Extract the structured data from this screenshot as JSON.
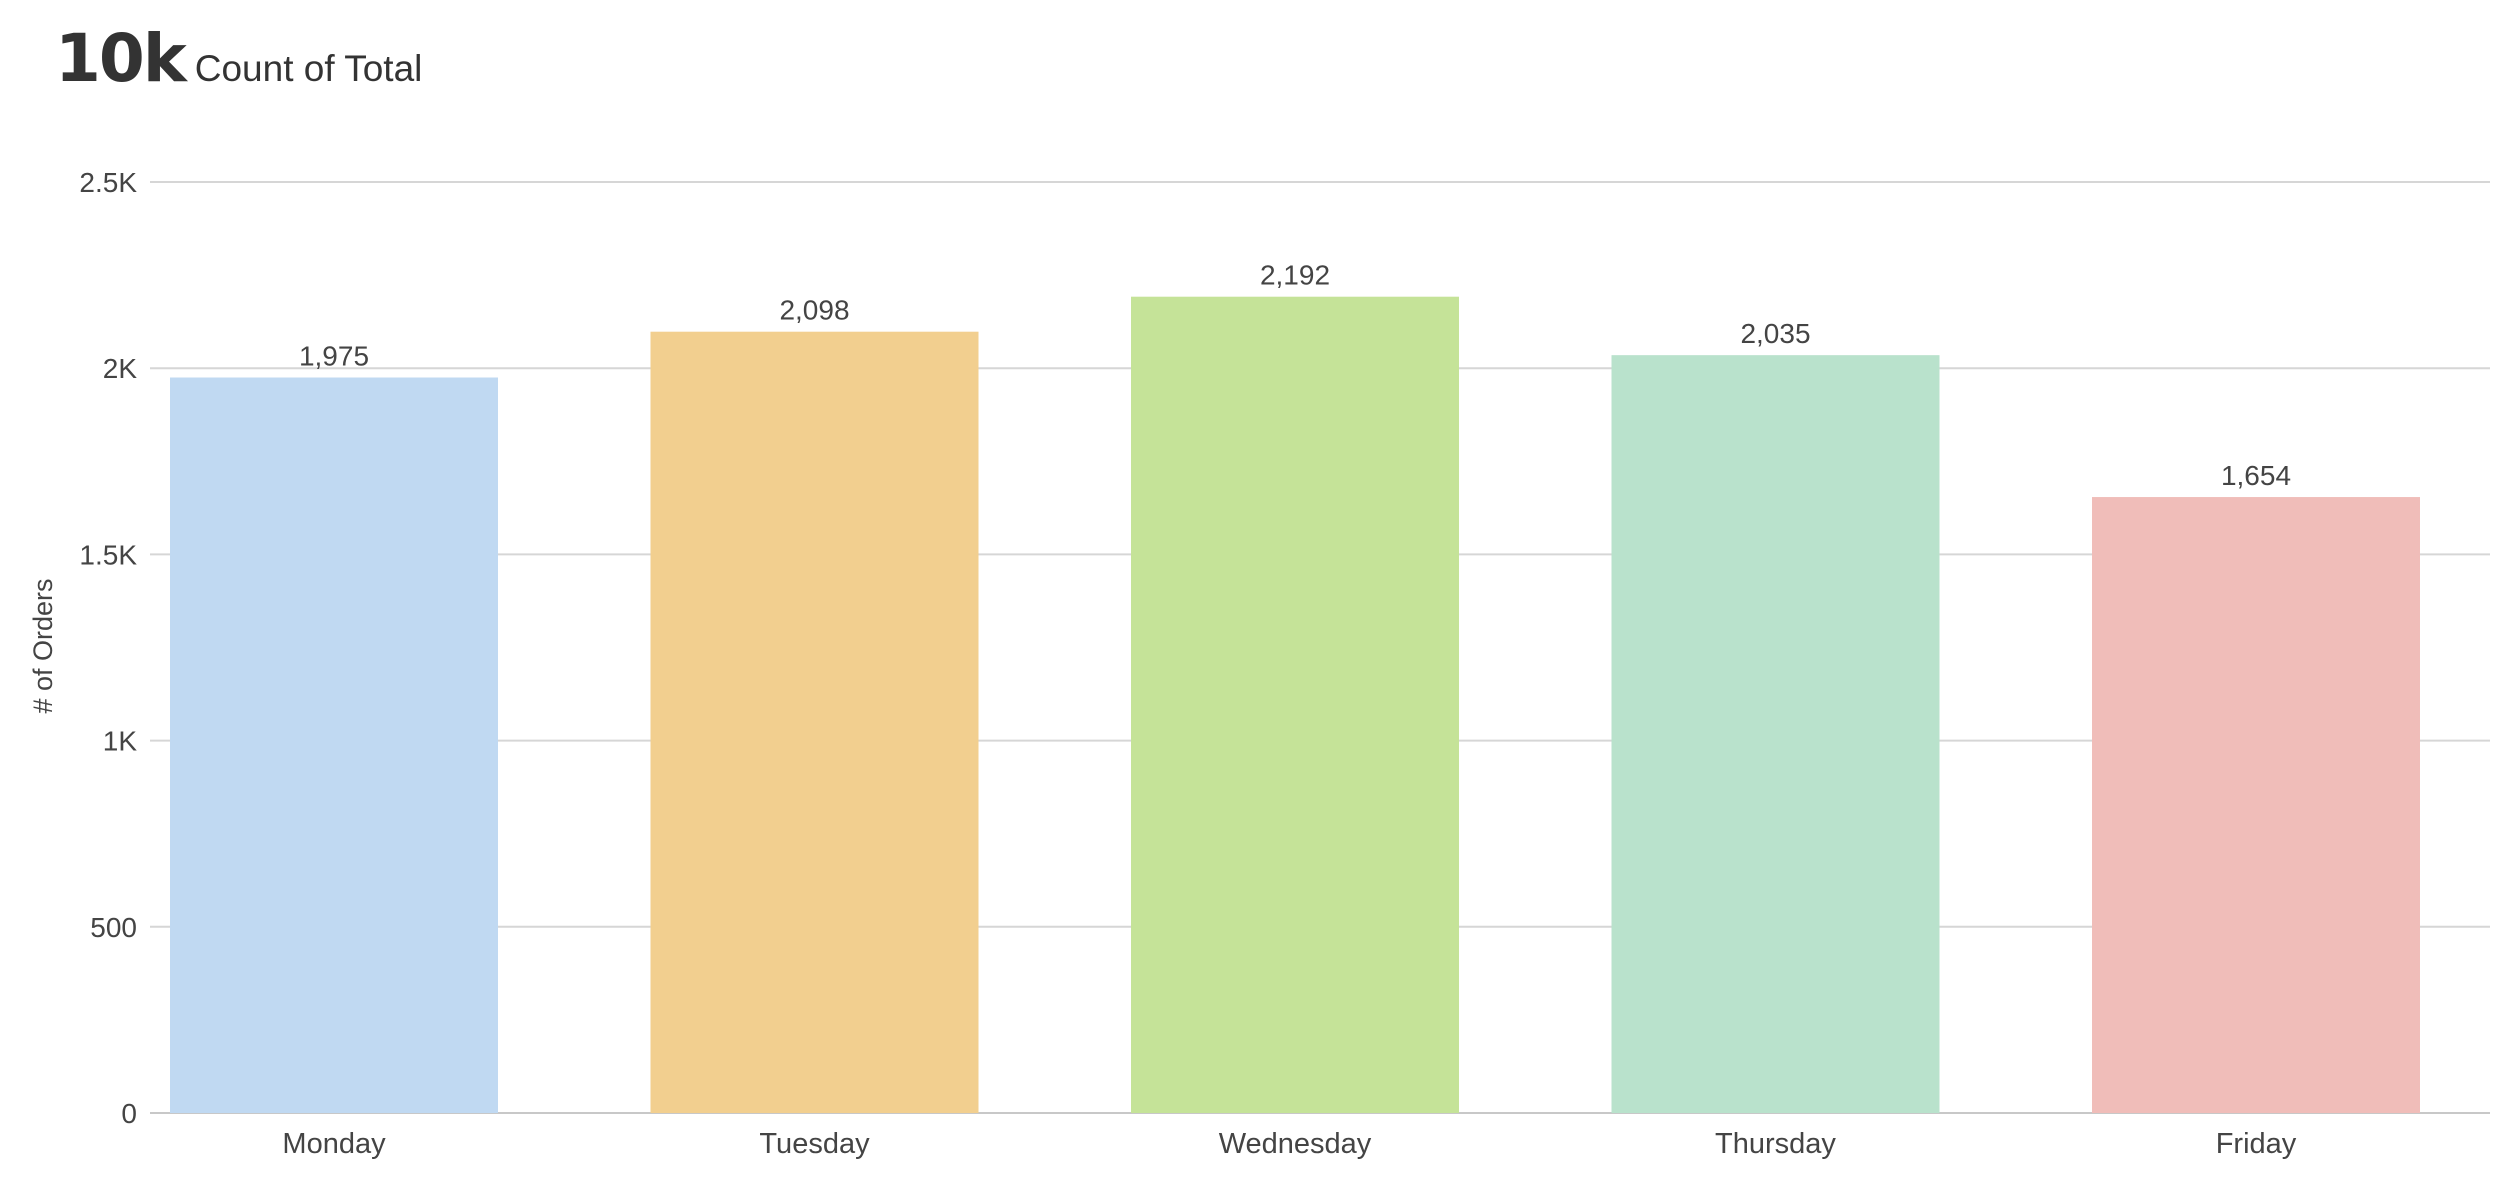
{
  "kpi": {
    "value": "10k",
    "label": "Count of Total"
  },
  "chart_data": {
    "type": "bar",
    "categories": [
      "Monday",
      "Tuesday",
      "Wednesday",
      "Thursday",
      "Friday"
    ],
    "values": [
      1975,
      2098,
      2192,
      2035,
      1654
    ],
    "value_labels": [
      "1,975",
      "2,098",
      "2,192",
      "2,035",
      "1,654"
    ],
    "colors": [
      "#c0d9f2",
      "#f2cf8f",
      "#c5e398",
      "#b9e2cc",
      "#f0bdb9"
    ],
    "ylabel": "# of Orders",
    "xlabel": "",
    "ylim": [
      0,
      2500
    ],
    "yticks": [
      0,
      500,
      1000,
      1500,
      2000,
      2500
    ],
    "ytick_labels": [
      "0",
      "500",
      "1K",
      "1.5K",
      "2K",
      "2.5K"
    ],
    "grid": true
  }
}
